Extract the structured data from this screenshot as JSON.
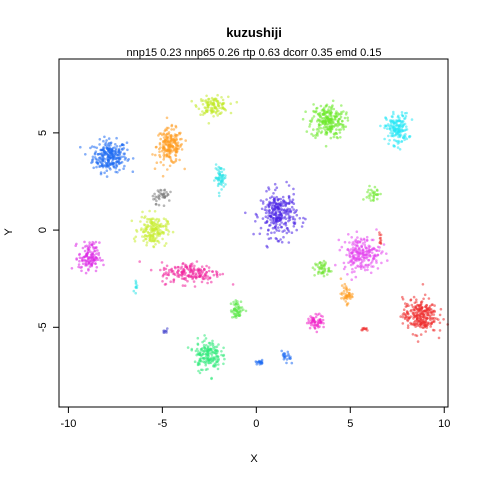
{
  "chart_data": {
    "type": "scatter",
    "title": "kuzushiji",
    "subtitle": "nnp15 0.23 nnp65 0.26 rtp 0.63 dcorr 0.35 emd 0.15",
    "xlabel": "X",
    "ylabel": "Y",
    "xlim": [
      -10.5,
      10.2
    ],
    "ylim": [
      -9.1,
      8.8
    ],
    "xticks": [
      -10,
      -5,
      0,
      5,
      10
    ],
    "yticks": [
      -5,
      0,
      5
    ],
    "grid": false,
    "legend": "none",
    "clusters": [
      {
        "color": "#1f6cf2",
        "cx": -7.8,
        "cy": 3.8,
        "rx": 0.9,
        "ry": 0.8,
        "n": 260
      },
      {
        "color": "#ff9a1e",
        "cx": -4.6,
        "cy": 4.3,
        "rx": 0.7,
        "ry": 0.9,
        "n": 200
      },
      {
        "color": "#c2ea2c",
        "cx": -2.3,
        "cy": 6.4,
        "rx": 0.8,
        "ry": 0.45,
        "n": 120
      },
      {
        "color": "#6de92c",
        "cx": 3.8,
        "cy": 5.6,
        "rx": 0.9,
        "ry": 0.9,
        "n": 240
      },
      {
        "color": "#28e8f5",
        "cx": 7.5,
        "cy": 5.2,
        "rx": 0.6,
        "ry": 0.8,
        "n": 170
      },
      {
        "color": "#2ee4e8",
        "cx": -1.9,
        "cy": 2.7,
        "rx": 0.3,
        "ry": 0.6,
        "n": 60
      },
      {
        "color": "#4a24e6",
        "cx": 1.2,
        "cy": 0.8,
        "rx": 0.95,
        "ry": 1.15,
        "n": 280
      },
      {
        "color": "#c8ec32",
        "cx": -5.5,
        "cy": 0.0,
        "rx": 0.75,
        "ry": 0.75,
        "n": 180
      },
      {
        "color": "#dd2ae6",
        "cx": -8.9,
        "cy": -1.4,
        "rx": 0.55,
        "ry": 0.75,
        "n": 130
      },
      {
        "color": "#f0239d",
        "cx": -3.5,
        "cy": -2.2,
        "rx": 1.6,
        "ry": 0.55,
        "n": 180
      },
      {
        "color": "#e444ee",
        "cx": 5.6,
        "cy": -1.2,
        "rx": 1.0,
        "ry": 0.9,
        "n": 220
      },
      {
        "color": "#73e634",
        "cx": 3.5,
        "cy": -2.0,
        "rx": 0.4,
        "ry": 0.4,
        "n": 50
      },
      {
        "color": "#ff9a1e",
        "cx": 4.8,
        "cy": -3.3,
        "rx": 0.3,
        "ry": 0.45,
        "n": 45
      },
      {
        "color": "#ee2d2d",
        "cx": 8.7,
        "cy": -4.4,
        "rx": 0.9,
        "ry": 0.9,
        "n": 260
      },
      {
        "color": "#f023c8",
        "cx": 3.2,
        "cy": -4.7,
        "rx": 0.45,
        "ry": 0.35,
        "n": 60
      },
      {
        "color": "#5ce84b",
        "cx": -1.0,
        "cy": -4.1,
        "rx": 0.35,
        "ry": 0.45,
        "n": 60
      },
      {
        "color": "#30ea7a",
        "cx": -2.6,
        "cy": -6.4,
        "rx": 0.7,
        "ry": 0.8,
        "n": 170
      },
      {
        "color": "#1f6cf2",
        "cx": 0.2,
        "cy": -6.8,
        "rx": 0.25,
        "ry": 0.12,
        "n": 18
      },
      {
        "color": "#1f6cf2",
        "cx": 1.6,
        "cy": -6.6,
        "rx": 0.25,
        "ry": 0.35,
        "n": 22
      },
      {
        "color": "#6de92c",
        "cx": 6.2,
        "cy": 1.8,
        "rx": 0.35,
        "ry": 0.5,
        "n": 30
      },
      {
        "color": "#7a7a7a",
        "cx": -5.0,
        "cy": 1.8,
        "rx": 0.5,
        "ry": 0.4,
        "n": 40
      },
      {
        "color": "#4444cc",
        "cx": -4.8,
        "cy": -5.2,
        "rx": 0.15,
        "ry": 0.1,
        "n": 8
      },
      {
        "color": "#ee2d2d",
        "cx": 5.8,
        "cy": -5.1,
        "rx": 0.2,
        "ry": 0.1,
        "n": 10
      },
      {
        "color": "#2ee4e8",
        "cx": -6.4,
        "cy": -3.0,
        "rx": 0.12,
        "ry": 0.3,
        "n": 10
      },
      {
        "color": "#ee2d2d",
        "cx": 6.6,
        "cy": -0.5,
        "rx": 0.15,
        "ry": 0.3,
        "n": 10
      }
    ]
  }
}
